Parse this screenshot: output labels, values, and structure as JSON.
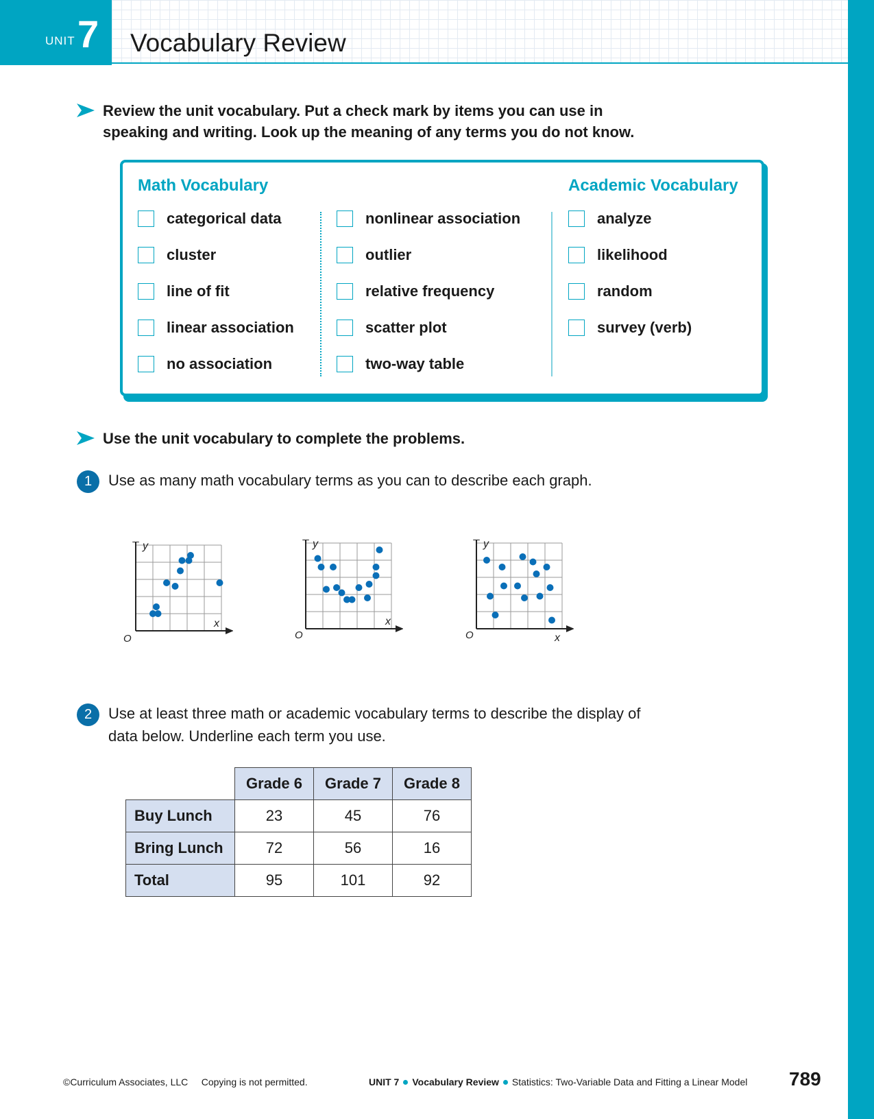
{
  "header": {
    "unit_label": "UNIT",
    "unit_number": "7",
    "title": "Vocabulary Review"
  },
  "instructions": {
    "review_line1": "Review the unit vocabulary. Put a check mark by items you can use in",
    "review_line2": "speaking and writing. Look up the meaning of any terms you do not know.",
    "complete": "Use the unit vocabulary to complete the problems."
  },
  "vocab": {
    "math_heading": "Math Vocabulary",
    "academic_heading": "Academic Vocabulary",
    "math_col1": [
      "categorical data",
      "cluster",
      "line of fit",
      "linear association",
      "no association"
    ],
    "math_col2": [
      "nonlinear association",
      "outlier",
      "relative frequency",
      "scatter plot",
      "two-way table"
    ],
    "academic": [
      "analyze",
      "likelihood",
      "random",
      "survey (verb)"
    ]
  },
  "problem1": {
    "number": "1",
    "text": "Use as many math vocabulary terms as you can to describe each graph."
  },
  "graphs": {
    "x_label": "x",
    "y_label": "y",
    "origin_label": "O"
  },
  "chart_data": [
    {
      "type": "scatter",
      "x": [
        1,
        1.3,
        1.2,
        1.8,
        2.3,
        2.6,
        2.7,
        3.1,
        3.2,
        4.9
      ],
      "y": [
        1,
        1,
        1.4,
        2.8,
        2.6,
        3.5,
        4.1,
        4.1,
        4.4,
        2.8
      ]
    },
    {
      "type": "scatter",
      "x": [
        0.7,
        0.9,
        1.2,
        1.6,
        1.8,
        2.1,
        2.4,
        2.7,
        3.1,
        3.6,
        3.7,
        4.1,
        4.1,
        4.3
      ],
      "y": [
        4.1,
        3.6,
        2.3,
        3.6,
        2.4,
        2.1,
        1.7,
        1.7,
        2.4,
        1.8,
        2.6,
        3.1,
        3.6,
        4.6
      ]
    },
    {
      "type": "scatter",
      "x": [
        0.6,
        0.8,
        1.1,
        1.5,
        1.6,
        2.4,
        2.7,
        2.8,
        3.3,
        3.5,
        3.7,
        4.1,
        4.3,
        4.4
      ],
      "y": [
        4.0,
        1.9,
        0.8,
        3.6,
        2.5,
        2.5,
        4.2,
        1.8,
        3.9,
        3.2,
        1.9,
        3.6,
        2.4,
        0.5
      ]
    }
  ],
  "problem2": {
    "number": "2",
    "line1": "Use at least three math or academic vocabulary terms to describe the display of",
    "line2": "data below. Underline each term you use."
  },
  "table": {
    "columns": [
      "Grade 6",
      "Grade 7",
      "Grade 8"
    ],
    "rows": [
      {
        "label": "Buy Lunch",
        "values": [
          "23",
          "45",
          "76"
        ]
      },
      {
        "label": "Bring Lunch",
        "values": [
          "72",
          "56",
          "16"
        ]
      },
      {
        "label": "Total",
        "values": [
          "95",
          "101",
          "92"
        ]
      }
    ]
  },
  "footer": {
    "copyright": "©Curriculum Associates, LLC",
    "copy_notice": "Copying is not permitted.",
    "unit": "UNIT 7",
    "section": "Vocabulary Review",
    "topic": "Statistics: Two-Variable Data and Fitting a Linear Model",
    "page_number": "789"
  }
}
